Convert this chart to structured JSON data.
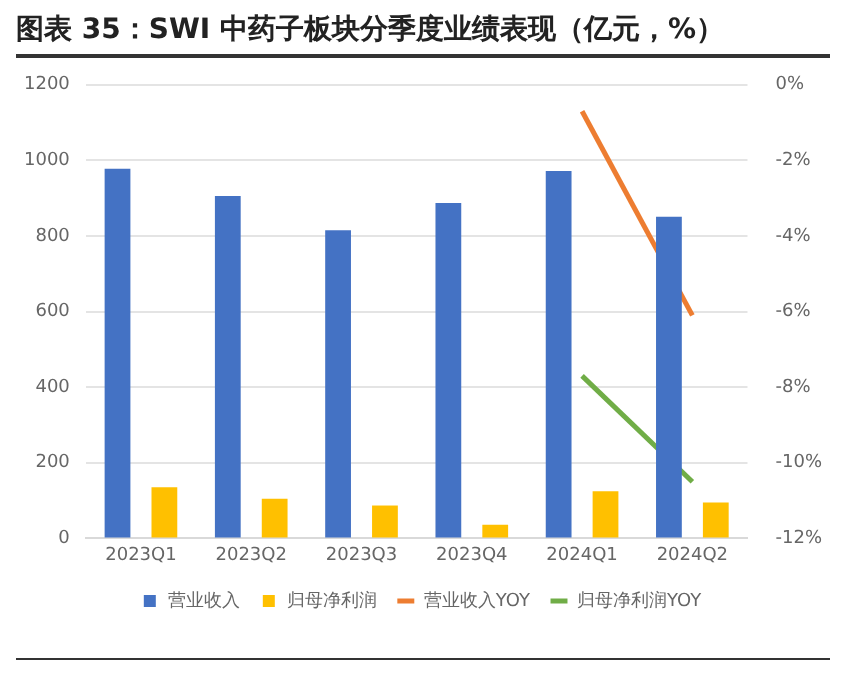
{
  "chart_data": {
    "type": "bar",
    "title": "图表 35：SWI 中药子板块分季度业绩表现（亿元，%）",
    "categories": [
      "2023Q1",
      "2023Q2",
      "2023Q3",
      "2023Q4",
      "2024Q1",
      "2024Q2"
    ],
    "series": [
      {
        "name": "营业收入",
        "color": "#4472c4",
        "values": [
          978,
          906,
          815,
          887,
          972,
          851
        ]
      },
      {
        "name": "归母净利润",
        "color": "#ffc000",
        "values": [
          135,
          105,
          87,
          36,
          125,
          95
        ]
      },
      {
        "name": "营业收入YOY",
        "type": "line",
        "axis": "y2",
        "color": "#ed7d31",
        "values": [
          null,
          null,
          null,
          null,
          -0.7,
          -6.1
        ]
      },
      {
        "name": "归母净利润YOY",
        "type": "line",
        "axis": "y2",
        "color": "#70ad47",
        "values": [
          null,
          null,
          null,
          null,
          -7.7,
          -10.5
        ]
      }
    ],
    "ylim": [
      0,
      1200
    ],
    "yticks": [
      0,
      200,
      400,
      600,
      800,
      1000,
      1200
    ],
    "y2lim": [
      -12,
      0
    ],
    "y2ticks": [
      {
        "value": -12,
        "label": "-12%"
      },
      {
        "value": -10,
        "label": "-10%"
      },
      {
        "value": -8,
        "label": "-8%"
      },
      {
        "value": -6,
        "label": "-6%"
      },
      {
        "value": -4,
        "label": "-4%"
      },
      {
        "value": -2,
        "label": "-2%"
      },
      {
        "value": 0,
        "label": "0%"
      }
    ],
    "grid": "y",
    "legend": "bottom"
  }
}
